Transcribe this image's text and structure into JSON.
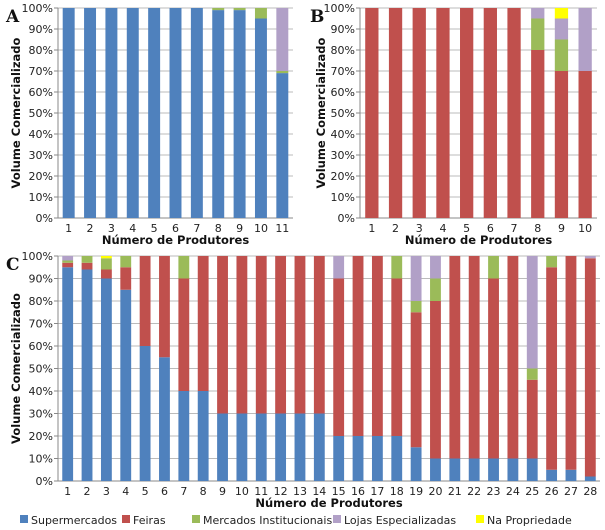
{
  "colors": {
    "Supermercados": "#4F81BD",
    "Feiras": "#C0504D",
    "Mercados Institucionais": "#9BBB59",
    "Lojas Especializadas": "#B1A0C7",
    "Na Propriedade": "#FFFF00"
  },
  "legend": [
    "Supermercados",
    "Feiras",
    "Mercados Institucionais",
    "Lojas Especializadas",
    "Na Propriedade"
  ],
  "chart_data": [
    {
      "type": "bar",
      "stacked": true,
      "panel": "A",
      "xlabel": "Número de Produtores",
      "ylabel": "Volume Comercializado",
      "ylim": [
        0,
        100
      ],
      "yticks": [
        "0%",
        "10%",
        "20%",
        "30%",
        "40%",
        "50%",
        "60%",
        "70%",
        "80%",
        "90%",
        "100%"
      ],
      "grid": true,
      "categories": [
        "1",
        "2",
        "3",
        "4",
        "5",
        "6",
        "7",
        "8",
        "9",
        "10",
        "11"
      ],
      "series": [
        {
          "name": "Supermercados",
          "values": [
            100,
            100,
            100,
            100,
            100,
            100,
            100,
            99,
            99,
            95,
            69
          ]
        },
        {
          "name": "Feiras",
          "values": [
            0,
            0,
            0,
            0,
            0,
            0,
            0,
            0,
            0,
            0,
            0
          ]
        },
        {
          "name": "Mercados Institucionais",
          "values": [
            0,
            0,
            0,
            0,
            0,
            0,
            0,
            1,
            1,
            5,
            1
          ]
        },
        {
          "name": "Lojas Especializadas",
          "values": [
            0,
            0,
            0,
            0,
            0,
            0,
            0,
            0,
            0,
            0,
            30
          ]
        },
        {
          "name": "Na Propriedade",
          "values": [
            0,
            0,
            0,
            0,
            0,
            0,
            0,
            0,
            0,
            0,
            0
          ]
        }
      ]
    },
    {
      "type": "bar",
      "stacked": true,
      "panel": "B",
      "xlabel": "Número de Produtores",
      "ylabel": "Volume Comercializado",
      "ylim": [
        0,
        100
      ],
      "yticks": [
        "0%",
        "10%",
        "20%",
        "30%",
        "40%",
        "50%",
        "60%",
        "70%",
        "80%",
        "90%",
        "100%"
      ],
      "grid": true,
      "categories": [
        "1",
        "2",
        "3",
        "4",
        "5",
        "6",
        "7",
        "8",
        "9",
        "10"
      ],
      "series": [
        {
          "name": "Supermercados",
          "values": [
            0,
            0,
            0,
            0,
            0,
            0,
            0,
            0,
            0,
            0
          ]
        },
        {
          "name": "Feiras",
          "values": [
            100,
            100,
            100,
            100,
            100,
            100,
            100,
            80,
            70,
            70
          ]
        },
        {
          "name": "Mercados Institucionais",
          "values": [
            0,
            0,
            0,
            0,
            0,
            0,
            0,
            15,
            15,
            0
          ]
        },
        {
          "name": "Lojas Especializadas",
          "values": [
            0,
            0,
            0,
            0,
            0,
            0,
            0,
            5,
            10,
            30
          ]
        },
        {
          "name": "Na Propriedade",
          "values": [
            0,
            0,
            0,
            0,
            0,
            0,
            0,
            0,
            5,
            0
          ]
        }
      ]
    },
    {
      "type": "bar",
      "stacked": true,
      "panel": "C",
      "xlabel": "Número de Produtores",
      "ylabel": "Volume Comercializado",
      "ylim": [
        0,
        100
      ],
      "yticks": [
        "0%",
        "10%",
        "20%",
        "30%",
        "40%",
        "50%",
        "60%",
        "70%",
        "80%",
        "90%",
        "100%"
      ],
      "grid": true,
      "legend_position": "bottom",
      "categories": [
        "1",
        "2",
        "3",
        "4",
        "5",
        "6",
        "7",
        "8",
        "9",
        "10",
        "11",
        "12",
        "13",
        "14",
        "15",
        "16",
        "17",
        "18",
        "19",
        "20",
        "21",
        "22",
        "23",
        "24",
        "25",
        "26",
        "27",
        "28"
      ],
      "series": [
        {
          "name": "Supermercados",
          "values": [
            95,
            94,
            90,
            85,
            60,
            55,
            40,
            40,
            30,
            30,
            30,
            30,
            30,
            30,
            20,
            20,
            20,
            20,
            15,
            10,
            10,
            10,
            10,
            10,
            10,
            5,
            5,
            2
          ]
        },
        {
          "name": "Feiras",
          "values": [
            2,
            3,
            4,
            10,
            40,
            45,
            50,
            60,
            70,
            70,
            70,
            70,
            70,
            70,
            70,
            80,
            80,
            70,
            60,
            70,
            90,
            90,
            80,
            90,
            35,
            90,
            95,
            97
          ]
        },
        {
          "name": "Mercados Institucionais",
          "values": [
            1,
            3,
            5,
            5,
            0,
            0,
            10,
            0,
            0,
            0,
            0,
            0,
            0,
            0,
            0,
            0,
            0,
            10,
            5,
            10,
            0,
            0,
            10,
            0,
            5,
            5,
            0,
            0
          ]
        },
        {
          "name": "Lojas Especializadas",
          "values": [
            2,
            0,
            0,
            0,
            0,
            0,
            0,
            0,
            0,
            0,
            0,
            0,
            0,
            0,
            10,
            0,
            0,
            0,
            20,
            10,
            0,
            0,
            0,
            0,
            50,
            0,
            0,
            1
          ]
        },
        {
          "name": "Na Propriedade",
          "values": [
            0,
            0,
            1,
            0,
            0,
            0,
            0,
            0,
            0,
            0,
            0,
            0,
            0,
            0,
            0,
            0,
            0,
            0,
            0,
            0,
            0,
            0,
            0,
            0,
            0,
            0,
            0,
            0
          ]
        }
      ]
    }
  ]
}
